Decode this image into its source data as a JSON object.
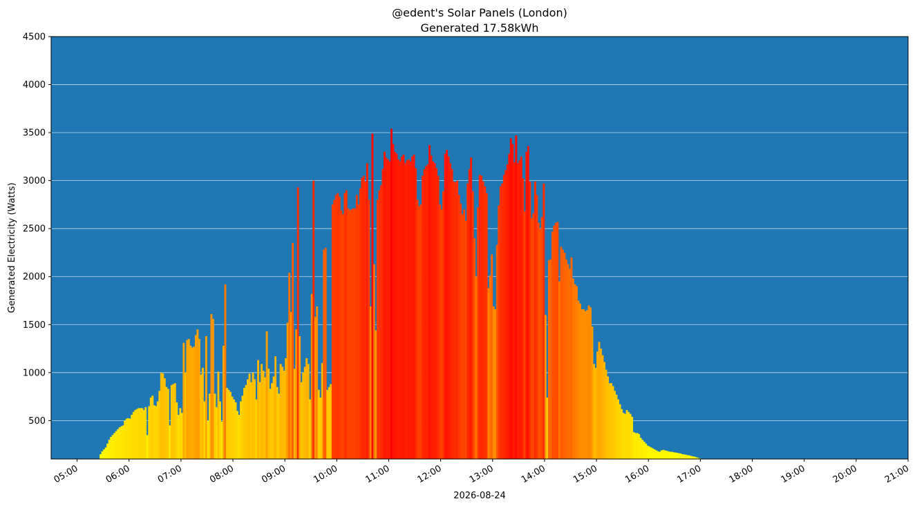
{
  "chart_data": {
    "type": "bar",
    "title": "@edent's Solar Panels (London)",
    "subtitle": "Generated 17.58kWh",
    "xlabel": "2026-08-24",
    "ylabel": "Generated Electricity (Watts)",
    "ylim": [
      100,
      4500
    ],
    "yticks": [
      500,
      1000,
      1500,
      2000,
      2500,
      3000,
      3500,
      4000,
      4500
    ],
    "xlim": [
      "04:30",
      "21:00"
    ],
    "xticks": [
      "05:00",
      "06:00",
      "07:00",
      "08:00",
      "09:00",
      "10:00",
      "11:00",
      "12:00",
      "13:00",
      "14:00",
      "15:00",
      "16:00",
      "17:00",
      "18:00",
      "19:00",
      "20:00",
      "21:00"
    ],
    "grid": "horizontal",
    "background_color": "#1f77b4",
    "bar_color_scale": [
      "#ffff00",
      "#ff0000"
    ],
    "bar_interval_minutes": 2,
    "series": [
      {
        "start_time": "05:26",
        "values": [
          150,
          180,
          200,
          220,
          260,
          300,
          330,
          350,
          370,
          390,
          410,
          430,
          440,
          450,
          500,
          520,
          525,
          520,
          560,
          590,
          610,
          620,
          630,
          630,
          630,
          610,
          640,
          350,
          650,
          740,
          760,
          660,
          650,
          700,
          810,
          1000,
          990,
          940,
          850,
          830,
          450,
          870,
          880,
          890,
          690,
          560,
          630,
          580,
          1310,
          1000,
          1340,
          1350,
          1280,
          1260,
          1270,
          1390,
          1450,
          1350,
          980,
          1050,
          700,
          1380,
          500,
          780,
          1610,
          1560,
          780,
          640,
          1010,
          700,
          490,
          1280,
          1920,
          840,
          820,
          800,
          750,
          720,
          690,
          600,
          560,
          700,
          760,
          840,
          870,
          930,
          990,
          900,
          1000,
          930,
          720,
          1130,
          900,
          1090,
          1020,
          950,
          1430,
          1040,
          830,
          890,
          960,
          1170,
          850,
          780,
          1090,
          1060,
          1020,
          1150,
          1520,
          2040,
          1630,
          2350,
          1040,
          1450,
          2930,
          1380,
          900,
          1000,
          1060,
          1150,
          1090,
          720,
          1820,
          3000,
          1580,
          1690,
          820,
          740,
          1100,
          2280,
          2300,
          820,
          850,
          880,
          2750,
          2800,
          2850,
          2870,
          2830,
          2690,
          2650,
          2870,
          2900,
          2710,
          2690,
          2700,
          2710,
          2710,
          2850,
          2750,
          2920,
          3030,
          3050,
          2990,
          3180,
          2800,
          1690,
          3490,
          2130,
          1440,
          2800,
          2900,
          2950,
          3120,
          3300,
          3240,
          3220,
          3200,
          3540,
          3380,
          3300,
          3280,
          3220,
          3200,
          3250,
          3270,
          3180,
          3210,
          3220,
          3200,
          3250,
          3270,
          3130,
          2800,
          2730,
          2750,
          3050,
          3120,
          3150,
          3170,
          3370,
          3260,
          3200,
          3180,
          3130,
          3050,
          2750,
          2700,
          2890,
          3280,
          3320,
          3250,
          3180,
          3120,
          2990,
          2980,
          3000,
          2850,
          2760,
          2650,
          2700,
          2580,
          2970,
          3120,
          3240,
          2890,
          2400,
          2000,
          2720,
          3060,
          3050,
          2990,
          2940,
          2870,
          1880,
          2010,
          2230,
          1690,
          1660,
          2330,
          2740,
          2940,
          2970,
          3060,
          3110,
          3170,
          3280,
          3440,
          3380,
          3190,
          3470,
          3180,
          3210,
          3250,
          3020,
          2680,
          3300,
          3360,
          2990,
          2610,
          2660,
          2990,
          2850,
          2560,
          2500,
          2620,
          2970,
          1600,
          740,
          2170,
          2180,
          2470,
          2530,
          2560,
          2570,
          1950,
          2310,
          2280,
          2250,
          2180,
          2130,
          2080,
          2200,
          1980,
          1920,
          1900,
          1750,
          1720,
          1660,
          1660,
          1640,
          1650,
          1700,
          1680,
          1480,
          1090,
          1050,
          1220,
          1320,
          1250,
          1180,
          1110,
          1030,
          960,
          890,
          890,
          860,
          810,
          770,
          720,
          670,
          620,
          580,
          570,
          610,
          590,
          570,
          540,
          380,
          370,
          370,
          360,
          320,
          300,
          280,
          260,
          240,
          230,
          220,
          210,
          200,
          190,
          180,
          175,
          190,
          195,
          190,
          185,
          180,
          175,
          175,
          170,
          168,
          165,
          160,
          158,
          150,
          148,
          145,
          140,
          138,
          132,
          128,
          125,
          118,
          112,
          108
        ]
      }
    ]
  }
}
